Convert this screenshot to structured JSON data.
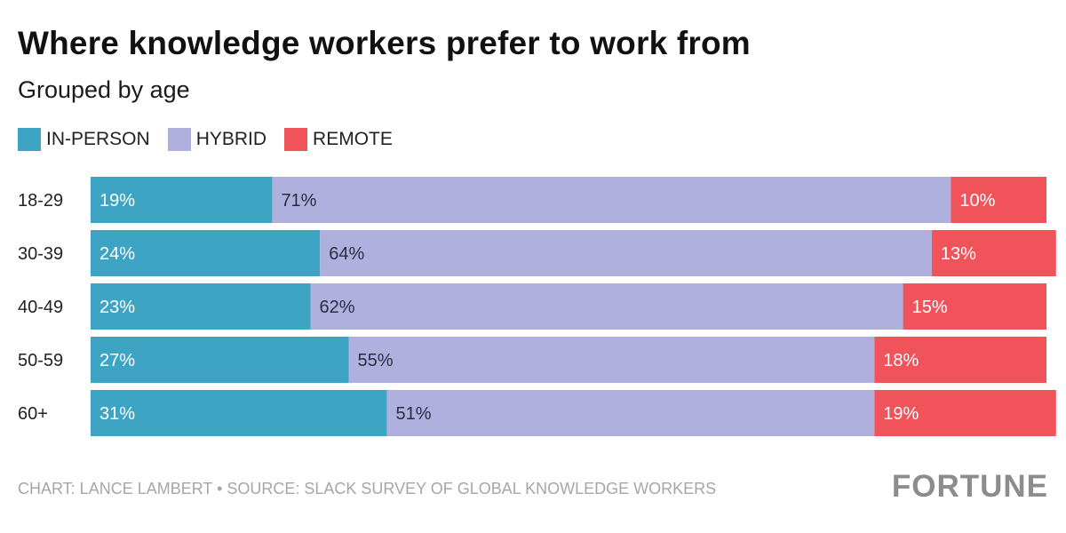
{
  "title": "Where knowledge workers prefer to work from",
  "subtitle": "Grouped by age",
  "colors": {
    "in_person": "#3da5c3",
    "hybrid": "#afb0de",
    "remote": "#f0535a"
  },
  "legend": [
    {
      "label": "IN-PERSON",
      "color": "#3da5c3"
    },
    {
      "label": "HYBRID",
      "color": "#afb0de"
    },
    {
      "label": "REMOTE",
      "color": "#f0535a"
    }
  ],
  "footer": {
    "credit": "CHART: LANCE LAMBERT • SOURCE: SLACK SURVEY OF GLOBAL KNOWLEDGE WORKERS",
    "logo": "FORTUNE"
  },
  "chart_data": {
    "type": "bar",
    "orientation": "horizontal",
    "stacked": true,
    "title": "Where knowledge workers prefer to work from",
    "subtitle": "Grouped by age",
    "categories": [
      "18-29",
      "30-39",
      "40-49",
      "50-59",
      "60+"
    ],
    "series": [
      {
        "name": "IN-PERSON",
        "color": "#3da5c3",
        "values": [
          19,
          24,
          23,
          27,
          31
        ],
        "labels": [
          "19%",
          "24%",
          "23%",
          "27%",
          "31%"
        ]
      },
      {
        "name": "HYBRID",
        "color": "#afb0de",
        "values": [
          71,
          64,
          62,
          55,
          51
        ],
        "labels": [
          "71%",
          "64%",
          "62%",
          "55%",
          "51%"
        ]
      },
      {
        "name": "REMOTE",
        "color": "#f0535a",
        "values": [
          10,
          13,
          15,
          18,
          19
        ],
        "labels": [
          "10%",
          "13%",
          "15%",
          "18%",
          "19%"
        ]
      }
    ],
    "xlim": [
      0,
      100
    ],
    "grid": false,
    "legend_position": "top-left"
  }
}
